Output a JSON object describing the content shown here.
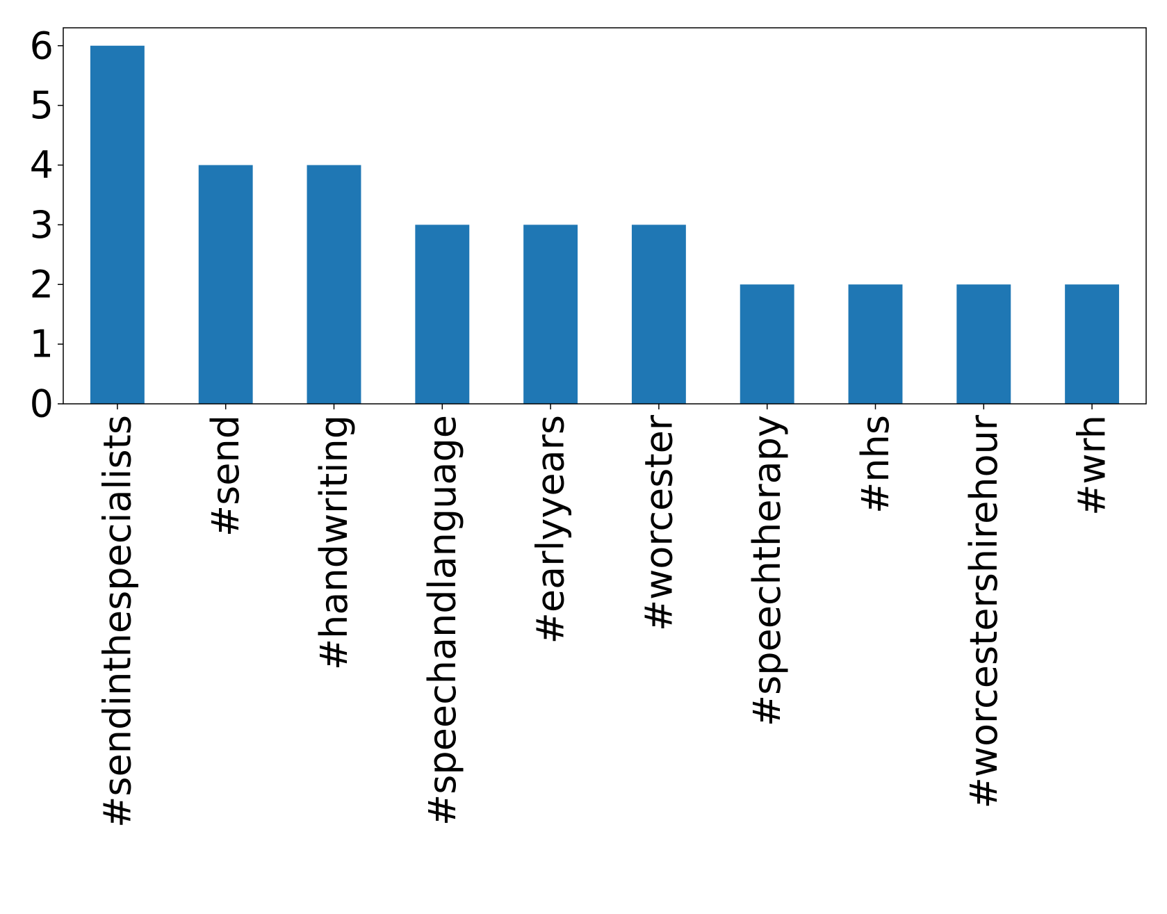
{
  "chart_data": {
    "type": "bar",
    "categories": [
      "#sendinthespecialists",
      "#send",
      "#handwriting",
      "#speechandlanguage",
      "#earlyyears",
      "#worcester",
      "#speechtherapy",
      "#nhs",
      "#worcestershirehour",
      "#wrh"
    ],
    "values": [
      6,
      4,
      4,
      3,
      3,
      3,
      2,
      2,
      2,
      2
    ],
    "color": "#1f77b4",
    "ylim": [
      0,
      6.3
    ],
    "yticks": [
      0,
      1,
      2,
      3,
      4,
      5,
      6
    ],
    "grid": false
  }
}
